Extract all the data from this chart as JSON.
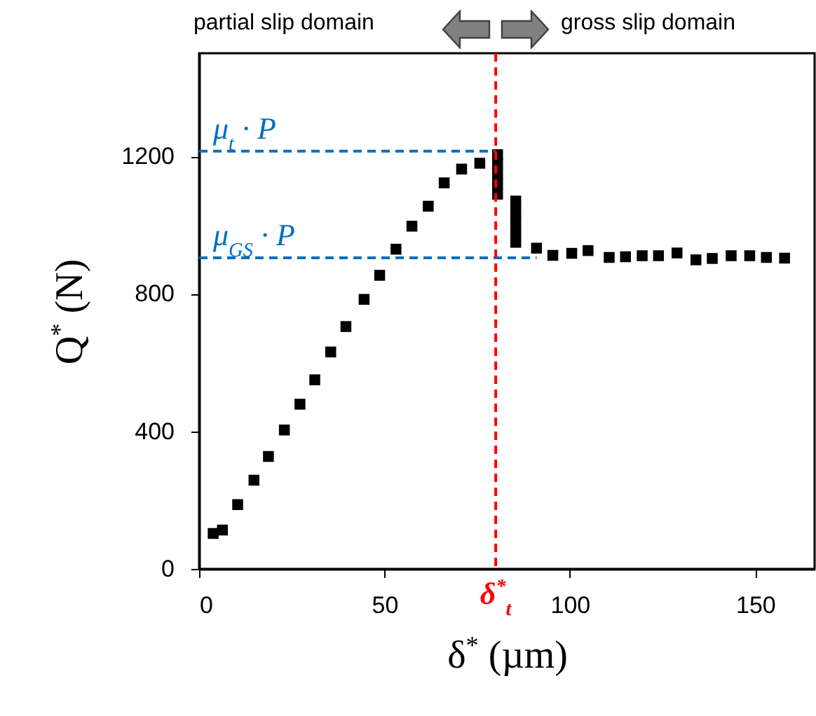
{
  "chart_data": {
    "type": "scatter",
    "xlabel": "δ$^{*}$ (µm)",
    "ylabel": "Q$^{*}$ (N)",
    "xlim": [
      0,
      166
    ],
    "ylim": [
      0,
      1500
    ],
    "xticks": [
      0,
      50,
      100,
      150
    ],
    "yticks": [
      0,
      400,
      800,
      1200
    ],
    "grid": false,
    "series": [
      {
        "color": "#000000",
        "marker": "square",
        "x": [
          3.8,
          6.3,
          10.4,
          14.8,
          18.7,
          23.0,
          27.2,
          31.2,
          35.5,
          39.6,
          44.5,
          48.7,
          53.1,
          57.4,
          61.8,
          66.1,
          70.8,
          75.7,
          80.5,
          80.5,
          80.5,
          80.5,
          80.5,
          85.4,
          85.4,
          85.4,
          85.4,
          85.4,
          91.0,
          95.4,
          100.5,
          104.9,
          110.6,
          115.0,
          119.5,
          123.9,
          128.9,
          134.0,
          138.4,
          143.5,
          148.5,
          153.0,
          157.9
        ],
        "values": [
          103,
          113,
          187,
          258,
          327,
          404,
          479,
          550,
          631,
          705,
          784,
          854,
          930,
          997,
          1055,
          1123,
          1163,
          1180,
          1205,
          1180,
          1150,
          1120,
          1090,
          1070,
          1040,
          1010,
          980,
          950,
          933,
          912,
          918,
          926,
          906,
          908,
          911,
          911,
          919,
          899,
          903,
          911,
          911,
          906,
          904
        ]
      },
      {
        "type": "line",
        "name": "μ$_{t}$ · P",
        "color": "#0070c0",
        "line_style": "dashed",
        "marker": "none",
        "x": [
          0,
          80
        ],
        "values": [
          1215,
          1215
        ]
      },
      {
        "type": "line",
        "name": "μ$_{GS}$ · P",
        "color": "#0070c0",
        "line_style": "dashed",
        "marker": "none",
        "x": [
          0,
          91
        ],
        "values": [
          905,
          905
        ]
      }
    ],
    "ref_lines": [
      {
        "axis": "x",
        "value": 80,
        "label": "δ$^{*}$$_{t}$",
        "color": "#ff0000",
        "line_style": "dashed"
      }
    ],
    "annotations": [
      "partial slip domain",
      "gross slip domain"
    ]
  }
}
